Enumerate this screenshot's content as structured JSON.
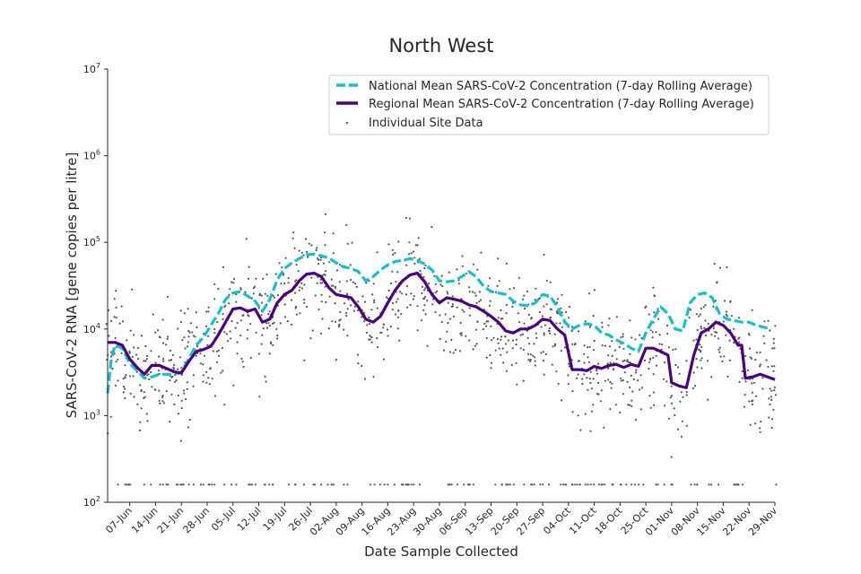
{
  "chart_data": {
    "type": "line",
    "title": "North West",
    "xlabel": "Date Sample Collected",
    "ylabel": "SARS-CoV-2 RNA [gene copies per litre]",
    "yscale": "log",
    "ylim": [
      100,
      10000000
    ],
    "y_ticks": [
      {
        "value": 100,
        "base": "10",
        "exp": "2"
      },
      {
        "value": 1000,
        "base": "10",
        "exp": "3"
      },
      {
        "value": 10000,
        "base": "10",
        "exp": "4"
      },
      {
        "value": 100000,
        "base": "10",
        "exp": "5"
      },
      {
        "value": 1000000,
        "base": "10",
        "exp": "6"
      },
      {
        "value": 10000000,
        "base": "10",
        "exp": "7"
      }
    ],
    "x_range_days": [
      0,
      181
    ],
    "x_ticks": [
      {
        "day": 6,
        "label": "07-Jun"
      },
      {
        "day": 13,
        "label": "14-Jun"
      },
      {
        "day": 20,
        "label": "21-Jun"
      },
      {
        "day": 27,
        "label": "28-Jun"
      },
      {
        "day": 34,
        "label": "05-Jul"
      },
      {
        "day": 41,
        "label": "12-Jul"
      },
      {
        "day": 48,
        "label": "19-Jul"
      },
      {
        "day": 55,
        "label": "26-Jul"
      },
      {
        "day": 62,
        "label": "02-Aug"
      },
      {
        "day": 69,
        "label": "09-Aug"
      },
      {
        "day": 76,
        "label": "16-Aug"
      },
      {
        "day": 83,
        "label": "23-Aug"
      },
      {
        "day": 90,
        "label": "30-Aug"
      },
      {
        "day": 97,
        "label": "06-Sep"
      },
      {
        "day": 104,
        "label": "13-Sep"
      },
      {
        "day": 111,
        "label": "20-Sep"
      },
      {
        "day": 118,
        "label": "27-Sep"
      },
      {
        "day": 125,
        "label": "04-Oct"
      },
      {
        "day": 132,
        "label": "11-Oct"
      },
      {
        "day": 139,
        "label": "18-Oct"
      },
      {
        "day": 146,
        "label": "25-Oct"
      },
      {
        "day": 153,
        "label": "01-Nov"
      },
      {
        "day": 160,
        "label": "08-Nov"
      },
      {
        "day": 167,
        "label": "15-Nov"
      },
      {
        "day": 174,
        "label": "22-Nov"
      },
      {
        "day": 181,
        "label": "29-Nov"
      }
    ],
    "series": [
      {
        "name": "National Mean SARS-CoV-2 Concentration (7-day Rolling Average)",
        "color": "#17becf",
        "style": "dashed",
        "points": [
          [
            0,
            1800
          ],
          [
            1,
            4500
          ],
          [
            2,
            6500
          ],
          [
            4,
            6000
          ],
          [
            6,
            4000
          ],
          [
            8,
            3300
          ],
          [
            10,
            2700
          ],
          [
            12,
            2800
          ],
          [
            14,
            3000
          ],
          [
            16,
            3000
          ],
          [
            18,
            3000
          ],
          [
            20,
            3200
          ],
          [
            22,
            4500
          ],
          [
            24,
            6500
          ],
          [
            26,
            8000
          ],
          [
            28,
            11000
          ],
          [
            30,
            15000
          ],
          [
            32,
            22000
          ],
          [
            34,
            26000
          ],
          [
            36,
            27000
          ],
          [
            38,
            24000
          ],
          [
            40,
            21000
          ],
          [
            42,
            16000
          ],
          [
            44,
            22000
          ],
          [
            46,
            37000
          ],
          [
            48,
            50000
          ],
          [
            50,
            58000
          ],
          [
            52,
            65000
          ],
          [
            54,
            72000
          ],
          [
            56,
            73000
          ],
          [
            58,
            70000
          ],
          [
            60,
            66000
          ],
          [
            62,
            58000
          ],
          [
            64,
            52000
          ],
          [
            66,
            50000
          ],
          [
            68,
            46000
          ],
          [
            70,
            36000
          ],
          [
            72,
            40000
          ],
          [
            74,
            48000
          ],
          [
            76,
            55000
          ],
          [
            78,
            60000
          ],
          [
            80,
            62000
          ],
          [
            82,
            65000
          ],
          [
            84,
            62000
          ],
          [
            86,
            56000
          ],
          [
            88,
            48000
          ],
          [
            90,
            36000
          ],
          [
            92,
            35000
          ],
          [
            94,
            36000
          ],
          [
            96,
            40000
          ],
          [
            98,
            46000
          ],
          [
            100,
            40000
          ],
          [
            102,
            31000
          ],
          [
            104,
            27000
          ],
          [
            106,
            26000
          ],
          [
            108,
            25000
          ],
          [
            110,
            21000
          ],
          [
            112,
            19000
          ],
          [
            114,
            18500
          ],
          [
            116,
            20000
          ],
          [
            118,
            25000
          ],
          [
            120,
            24000
          ],
          [
            122,
            18000
          ],
          [
            124,
            12000
          ],
          [
            126,
            10000
          ],
          [
            128,
            11000
          ],
          [
            130,
            11500
          ],
          [
            132,
            11000
          ],
          [
            134,
            9000
          ],
          [
            136,
            8500
          ],
          [
            138,
            7500
          ],
          [
            140,
            6800
          ],
          [
            142,
            6000
          ],
          [
            144,
            5500
          ],
          [
            146,
            9000
          ],
          [
            148,
            13000
          ],
          [
            150,
            18000
          ],
          [
            152,
            15000
          ],
          [
            154,
            10000
          ],
          [
            156,
            9500
          ],
          [
            158,
            20000
          ],
          [
            160,
            25000
          ],
          [
            162,
            26000
          ],
          [
            164,
            23000
          ],
          [
            166,
            15000
          ],
          [
            168,
            13000
          ],
          [
            170,
            12500
          ],
          [
            172,
            12000
          ],
          [
            174,
            12000
          ],
          [
            176,
            11000
          ],
          [
            178,
            10500
          ],
          [
            180,
            10000
          ]
        ]
      },
      {
        "name": "Regional Mean SARS-CoV-2 Concentration (7-day Rolling Average)",
        "color": "#4b0082",
        "style": "solid",
        "points": [
          [
            0,
            7000
          ],
          [
            2,
            7000
          ],
          [
            4,
            6500
          ],
          [
            6,
            4500
          ],
          [
            8,
            3600
          ],
          [
            10,
            3000
          ],
          [
            12,
            3800
          ],
          [
            14,
            3800
          ],
          [
            16,
            3500
          ],
          [
            18,
            3200
          ],
          [
            20,
            3100
          ],
          [
            22,
            4200
          ],
          [
            24,
            5500
          ],
          [
            26,
            5800
          ],
          [
            28,
            6300
          ],
          [
            30,
            8500
          ],
          [
            32,
            12000
          ],
          [
            34,
            17000
          ],
          [
            36,
            17500
          ],
          [
            38,
            16000
          ],
          [
            40,
            17000
          ],
          [
            42,
            12000
          ],
          [
            44,
            13000
          ],
          [
            46,
            20000
          ],
          [
            48,
            25000
          ],
          [
            50,
            28000
          ],
          [
            52,
            36000
          ],
          [
            54,
            43000
          ],
          [
            56,
            44000
          ],
          [
            58,
            40000
          ],
          [
            60,
            30000
          ],
          [
            62,
            25000
          ],
          [
            64,
            24000
          ],
          [
            66,
            23000
          ],
          [
            68,
            18000
          ],
          [
            70,
            13000
          ],
          [
            72,
            12000
          ],
          [
            74,
            14000
          ],
          [
            76,
            20000
          ],
          [
            78,
            28000
          ],
          [
            80,
            36000
          ],
          [
            82,
            42000
          ],
          [
            84,
            44000
          ],
          [
            86,
            35000
          ],
          [
            88,
            25000
          ],
          [
            90,
            20000
          ],
          [
            92,
            23000
          ],
          [
            94,
            22000
          ],
          [
            96,
            21000
          ],
          [
            98,
            19000
          ],
          [
            100,
            18000
          ],
          [
            102,
            16000
          ],
          [
            104,
            14000
          ],
          [
            106,
            12000
          ],
          [
            108,
            9500
          ],
          [
            110,
            9000
          ],
          [
            112,
            10000
          ],
          [
            114,
            10000
          ],
          [
            116,
            11000
          ],
          [
            118,
            13000
          ],
          [
            120,
            12500
          ],
          [
            122,
            10000
          ],
          [
            124,
            8500
          ],
          [
            126,
            3400
          ],
          [
            128,
            3400
          ],
          [
            130,
            3300
          ],
          [
            132,
            3700
          ],
          [
            134,
            3500
          ],
          [
            136,
            3800
          ],
          [
            138,
            3900
          ],
          [
            140,
            3600
          ],
          [
            142,
            3900
          ],
          [
            144,
            3700
          ],
          [
            146,
            6000
          ],
          [
            148,
            6000
          ],
          [
            150,
            5500
          ],
          [
            152,
            5000
          ],
          [
            153,
            2400
          ],
          [
            155,
            2200
          ],
          [
            157,
            2100
          ],
          [
            159,
            5000
          ],
          [
            161,
            9000
          ],
          [
            163,
            10000
          ],
          [
            165,
            12000
          ],
          [
            167,
            11000
          ],
          [
            169,
            9000
          ],
          [
            171,
            6500
          ],
          [
            172,
            6500
          ],
          [
            173,
            2700
          ],
          [
            175,
            2800
          ],
          [
            177,
            3000
          ],
          [
            179,
            2800
          ],
          [
            181,
            2600
          ]
        ]
      }
    ],
    "scatter": {
      "name": "Individual Site Data",
      "color": "#555555",
      "description": "individual site measurements, roughly 2e2 to 3e5 gene copies per litre, with many values at the detection floor of about 1.6e2"
    },
    "legend": {
      "position": "top-right",
      "entries": [
        "National Mean SARS-CoV-2 Concentration (7-day Rolling Average)",
        "Regional Mean SARS-CoV-2 Concentration (7-day Rolling Average)",
        "Individual Site Data"
      ]
    }
  }
}
